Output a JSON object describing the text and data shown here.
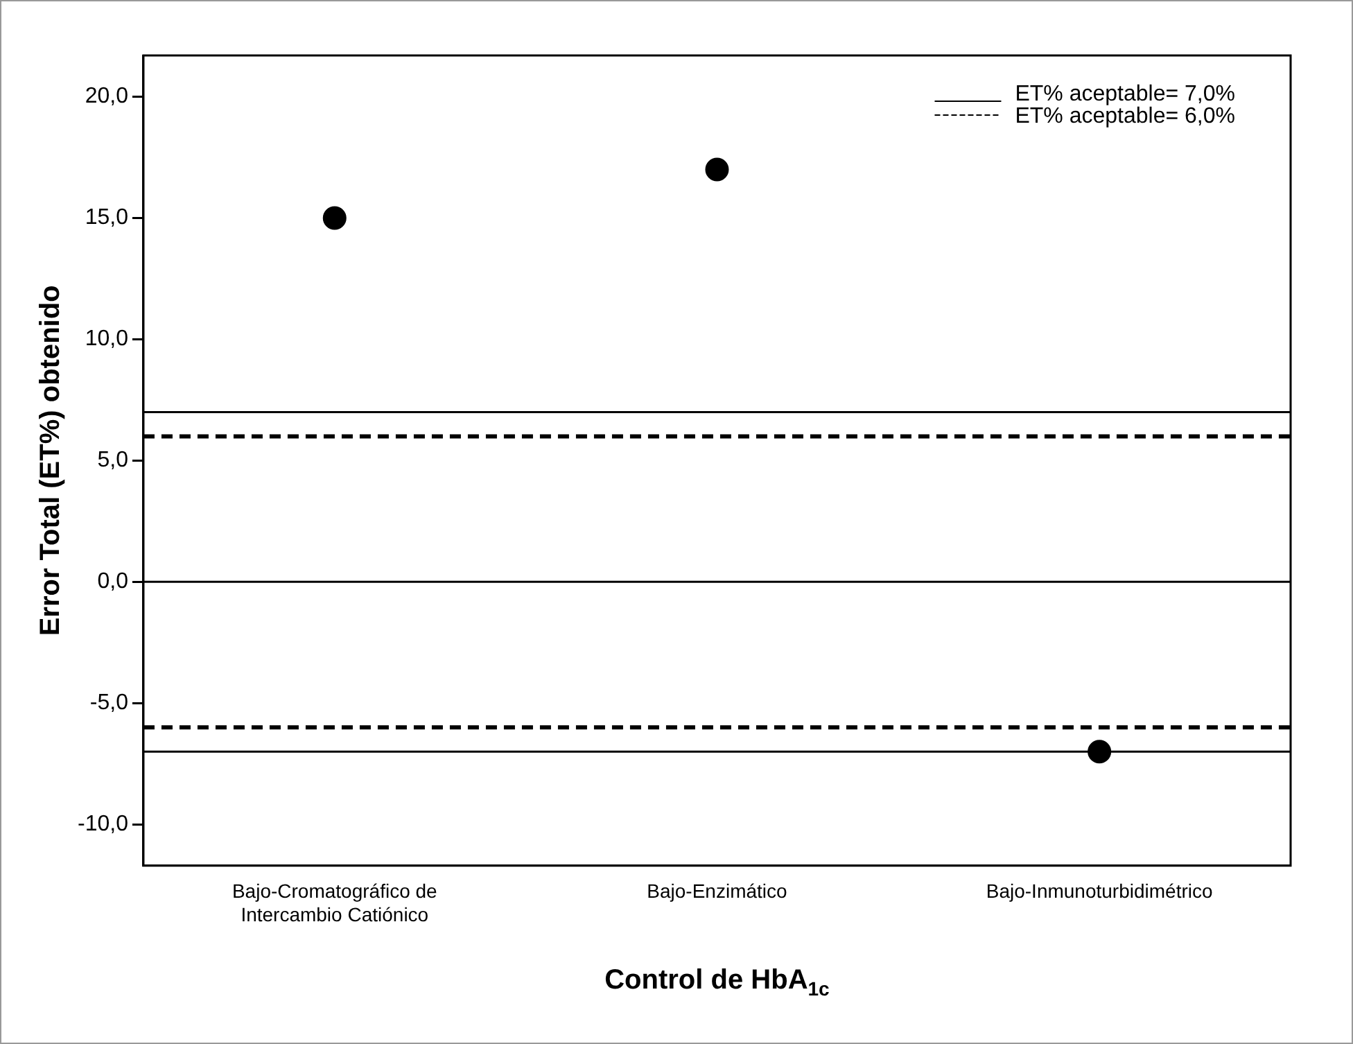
{
  "chart_data": {
    "type": "scatter",
    "xlabel": "Control de HbA$_{1c}$",
    "ylabel": "Error Total (ET%) obtenido",
    "categories": [
      "Bajo-Cromatográfico de Intercambio Catiónico",
      "Bajo-Enzimático",
      "Bajo-Inmunoturbidimétrico"
    ],
    "series": [
      {
        "color": "#000000",
        "values": [
          15,
          17,
          -7
        ]
      }
    ],
    "ylim": [
      -11.7,
      21.7
    ],
    "yticks": [
      {
        "value": -10,
        "label": "-10,0"
      },
      {
        "value": -5,
        "label": "-5,0"
      },
      {
        "value": 0,
        "label": "0,0"
      },
      {
        "value": 5,
        "label": "5,0"
      },
      {
        "value": 10,
        "label": "10,0"
      },
      {
        "value": 15,
        "label": "15,0"
      },
      {
        "value": 20,
        "label": "20,0"
      }
    ],
    "ref_lines": [
      {
        "axis": "y",
        "value": 7,
        "label": "ET% aceptable= 7,0%",
        "color": "#000000",
        "line_style": "solid"
      },
      {
        "axis": "y",
        "value": 6,
        "label": "ET% aceptable= 6,0%",
        "color": "#000000",
        "line_style": "dashed"
      },
      {
        "axis": "y",
        "value": 0,
        "color": "#000000",
        "line_style": "solid"
      },
      {
        "axis": "y",
        "value": -6,
        "color": "#000000",
        "line_style": "dashed"
      },
      {
        "axis": "y",
        "value": -7,
        "color": "#000000",
        "line_style": "solid"
      }
    ],
    "marker": "circle",
    "grid": false,
    "legend": "top right"
  }
}
